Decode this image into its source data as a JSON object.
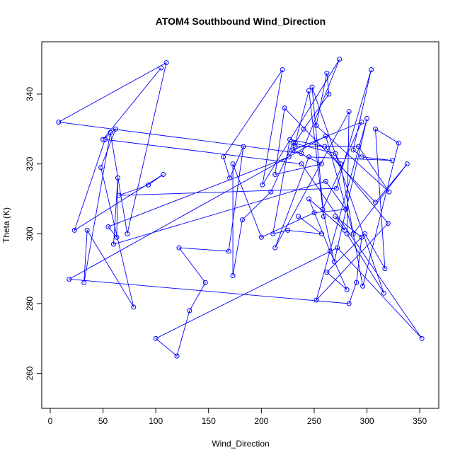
{
  "chart_data": {
    "type": "line",
    "title": "ATOM4 Southbound Wind_Direction",
    "xlabel": "Wind_Direction",
    "ylabel": "Theta (K)",
    "xlim": [
      -8,
      368
    ],
    "ylim": [
      250,
      355
    ],
    "x_ticks": [
      0,
      50,
      100,
      150,
      200,
      250,
      300,
      350
    ],
    "y_ticks": [
      260,
      280,
      300,
      320,
      340
    ],
    "grid": false,
    "legend": "none",
    "line_color": "#0000FF",
    "marker": "open-circle",
    "series": [
      {
        "x": [
          105,
          50,
          62,
          48,
          79,
          35,
          32,
          57,
          73,
          110,
          8,
          238,
          274,
          201,
          220,
          164,
          170,
          183,
          169,
          122,
          147,
          132,
          120,
          100,
          272,
          352,
          238,
          52,
          23,
          107,
          93,
          65,
          271,
          304,
          287,
          295,
          324,
          245,
          213,
          283,
          281,
          316,
          248,
          259,
          245,
          232,
          240,
          264,
          262,
          252,
          321,
          292,
          232,
          226,
          55,
          63,
          64,
          60,
          261,
          280,
          250,
          200,
          173,
          173,
          182,
          209,
          230,
          270,
          275,
          296,
          330,
          308,
          317,
          298,
          262,
          281,
          265,
          245,
          279,
          270,
          295,
          290,
          283,
          18,
          261,
          287,
          338,
          308,
          222,
          213,
          257,
          230,
          295,
          258,
          269,
          300,
          252,
          320,
          260,
          227,
          211,
          225,
          257,
          235
        ],
        "y": [
          347.5,
          327,
          330,
          319,
          279,
          301,
          286,
          329,
          300,
          349,
          332,
          323,
          350,
          314,
          347,
          322,
          316,
          325,
          295,
          296,
          286,
          278,
          265,
          270,
          296,
          270,
          320,
          327,
          301,
          317,
          314,
          311,
          313,
          347,
          324,
          322,
          321,
          322,
          296,
          335,
          300,
          283,
          342,
          305,
          341,
          326,
          330,
          340,
          346,
          331,
          312,
          325,
          325,
          322,
          302,
          299,
          316,
          297,
          315,
          307,
          306,
          299,
          320,
          288,
          304,
          312,
          326,
          323,
          320,
          285,
          326,
          330,
          290,
          300,
          289,
          284,
          295,
          310,
          301,
          305,
          299,
          286,
          280,
          287,
          328,
          300,
          320,
          309,
          336,
          317,
          320,
          324,
          332,
          307,
          292,
          333,
          281,
          303,
          325,
          327,
          300,
          301,
          300,
          305
        ]
      }
    ]
  }
}
